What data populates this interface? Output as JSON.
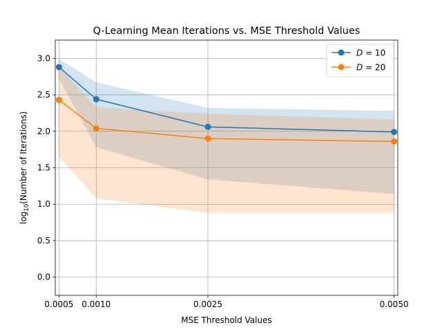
{
  "chart_data": {
    "type": "line",
    "title": "Q-Learning Mean Iterations vs. MSE Threshold Values",
    "xlabel": "MSE Threshold Values",
    "ylabel_prefix": "log",
    "ylabel_sub": "10",
    "ylabel_suffix": "(Number of Iterations)",
    "x": [
      0.0005,
      0.001,
      0.0025,
      0.005
    ],
    "x_ticks": [
      0.0005,
      0.001,
      0.0025,
      0.005
    ],
    "x_tick_labels": [
      "0.0005",
      "0.0010",
      "0.0025",
      "0.0050"
    ],
    "xlim": [
      0.00045,
      0.00505
    ],
    "ylim": [
      -0.25,
      3.25
    ],
    "y_ticks": [
      0.0,
      0.5,
      1.0,
      1.5,
      2.0,
      2.5,
      3.0
    ],
    "y_tick_labels": [
      "0.0",
      "0.5",
      "1.0",
      "1.5",
      "2.0",
      "2.5",
      "3.0"
    ],
    "grid": true,
    "legend_position": "top-right",
    "series": [
      {
        "name_var": "D",
        "name_eq": " = 10",
        "color": "#1f77b4",
        "values": [
          2.88,
          2.44,
          2.06,
          1.99
        ],
        "band_upper": [
          2.99,
          2.67,
          2.32,
          2.28
        ],
        "band_lower": [
          2.72,
          1.78,
          1.34,
          1.14
        ]
      },
      {
        "name_var": "D",
        "name_eq": " = 20",
        "color": "#ff7f0e",
        "values": [
          2.43,
          2.04,
          1.9,
          1.86
        ],
        "band_upper": [
          2.88,
          2.33,
          2.24,
          2.16
        ],
        "band_lower": [
          1.65,
          1.08,
          0.88,
          0.88
        ]
      }
    ]
  }
}
